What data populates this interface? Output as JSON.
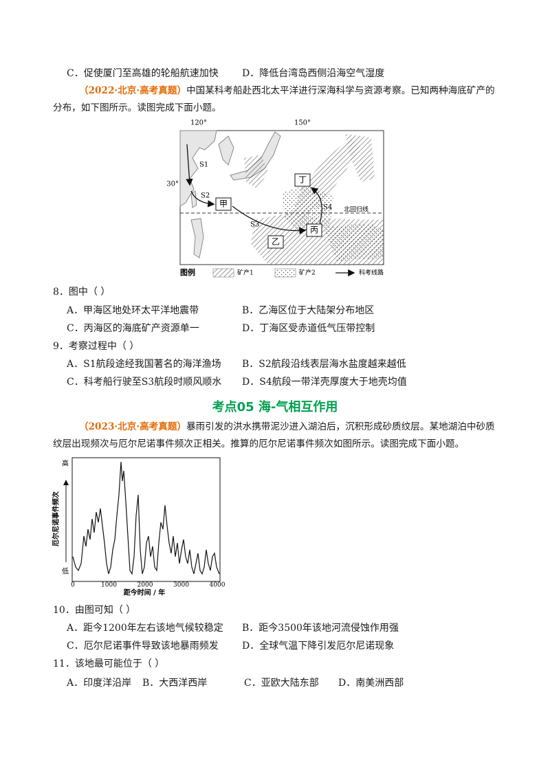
{
  "q7_options": [
    "C．促使厦门至高雄的轮船航速加快",
    "D．降低台湾岛西侧沿海空气湿度"
  ],
  "passage_1": {
    "source": "（2022·北京·高考真题）",
    "text": "中国某科考船赴西北太平洋进行深海科学与资源考察。已知两种海底矿产的分布，如下图所示。读图完成下面小题。"
  },
  "map": {
    "longitudes": [
      "120°",
      "150°"
    ],
    "latitude": "30°",
    "routes": [
      "S1",
      "S2",
      "S3",
      "S4"
    ],
    "areas": [
      "甲",
      "乙",
      "丙",
      "丁"
    ],
    "tropic": "北回归线",
    "legend": {
      "title": "图例",
      "items": [
        "矿产1",
        "矿产2",
        "科考线路"
      ]
    }
  },
  "q8": {
    "stem": "8．图中（ ）",
    "options": [
      "A．甲海区地处环太平洋地震带",
      "B．乙海区位于大陆架分布地区",
      "C．丙海区的海底矿产资源单一",
      "D．丁海区受赤道低气压带控制"
    ]
  },
  "q9": {
    "stem": "9．考察过程中（ ）",
    "options": [
      "A．S1航段途经我国著名的海洋渔场",
      "B．S2航段沿线表层海水盐度越来越低",
      "C．科考船行驶至S3航段时顺风顺水",
      "D．S4航段一带洋壳厚度大于地壳均值"
    ]
  },
  "section_title": "考点05 海-气相互作用",
  "passage_2": {
    "source": "（2023·北京·高考真题）",
    "text": "暴雨引发的洪水携带泥沙进入湖泊后，沉积形成砂质纹层。某地湖泊中砂质纹层出现频次与厄尔尼诺事件频次正相关。推算的厄尔尼诺事件频次如图所示。读图完成下面小题。"
  },
  "chart": {
    "y_label": "厄尔尼诺事件频次",
    "y_high": "高",
    "y_low": "低",
    "x_ticks": [
      0,
      1000,
      2000,
      3000,
      4000
    ],
    "x_label": "距今时间 / 年"
  },
  "q10": {
    "stem": "10．由图可知（ ）",
    "options": [
      "A．距今1200年左右该地气候较稳定",
      "B．距今3500年该地河流侵蚀作用强",
      "C．厄尔尼诺事件导致该地暴雨频发",
      "D．全球气温下降引发厄尔尼诺现象"
    ]
  },
  "q11": {
    "stem": "11．该地最可能位于（ ）",
    "options": [
      "A．印度洋沿岸",
      "B．大西洋西岸",
      "C．亚欧大陆东部",
      "D．南美洲西部"
    ]
  }
}
